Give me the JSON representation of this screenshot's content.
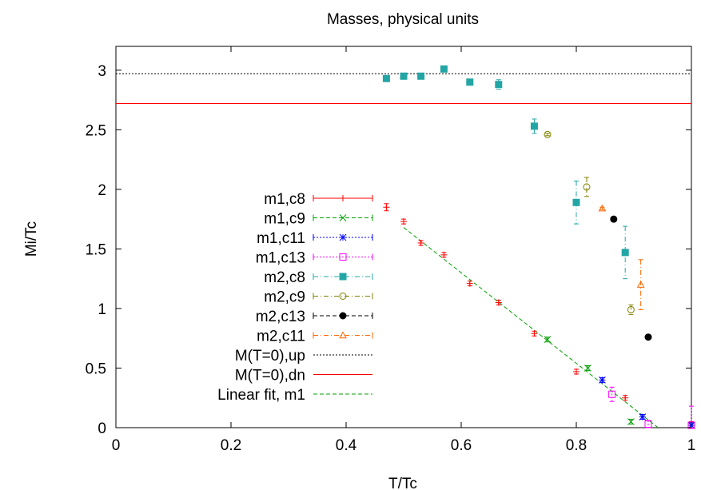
{
  "chart_data": {
    "type": "scatter",
    "title": "Masses, physical units",
    "xlabel": "T/Tc",
    "ylabel": "Mi/Tc",
    "xlim": [
      0,
      1
    ],
    "ylim": [
      0,
      3.2
    ],
    "xticks": [
      "0",
      "0.2",
      "0.4",
      "0.6",
      "0.8",
      "1"
    ],
    "yticks": [
      "0",
      "0.5",
      "1",
      "1.5",
      "2",
      "2.5",
      "3"
    ],
    "xtick_values": [
      0,
      0.2,
      0.4,
      0.6,
      0.8,
      1
    ],
    "ytick_values": [
      0,
      0.5,
      1,
      1.5,
      2,
      2.5,
      3
    ],
    "grid": false,
    "legend_position": "left",
    "series": [
      {
        "name": "m1,c8",
        "color": "#ff0000",
        "marker": "plus",
        "line": "solid",
        "points": [
          {
            "x": 0.47,
            "y": 1.85,
            "err": 0.03
          },
          {
            "x": 0.5,
            "y": 1.73,
            "err": 0.02
          },
          {
            "x": 0.53,
            "y": 1.55,
            "err": 0.02
          },
          {
            "x": 0.57,
            "y": 1.45,
            "err": 0.02
          },
          {
            "x": 0.615,
            "y": 1.21,
            "err": 0.02
          },
          {
            "x": 0.665,
            "y": 1.05,
            "err": 0.02
          },
          {
            "x": 0.727,
            "y": 0.79,
            "err": 0.02
          },
          {
            "x": 0.8,
            "y": 0.47,
            "err": 0.02
          },
          {
            "x": 0.885,
            "y": 0.25,
            "err": 0.02
          },
          {
            "x": 1.0,
            "y": 0.02,
            "err": 0.03
          }
        ]
      },
      {
        "name": "m1,c9",
        "color": "#00a000",
        "marker": "cross",
        "line": "dashed",
        "points": [
          {
            "x": 0.75,
            "y": 0.74,
            "err": 0.02
          },
          {
            "x": 0.82,
            "y": 0.5,
            "err": 0.02
          },
          {
            "x": 0.895,
            "y": 0.05,
            "err": 0.02
          },
          {
            "x": 1.0,
            "y": 0.02,
            "err": 0.02
          }
        ]
      },
      {
        "name": "m1,c11",
        "color": "#0000ff",
        "marker": "star",
        "line": "dotted",
        "points": [
          {
            "x": 0.845,
            "y": 0.4,
            "err": 0.02
          },
          {
            "x": 0.915,
            "y": 0.09,
            "err": 0.02
          },
          {
            "x": 1.0,
            "y": 0.02,
            "err": 0.02
          }
        ]
      },
      {
        "name": "m1,c13",
        "color": "#ff00ff",
        "marker": "square-open",
        "line": "dotted",
        "points": [
          {
            "x": 0.862,
            "y": 0.28,
            "err": 0.06
          },
          {
            "x": 0.925,
            "y": 0.03,
            "err": 0.03
          },
          {
            "x": 1.0,
            "y": 0.02,
            "err": 0.16
          }
        ]
      },
      {
        "name": "m2,c8",
        "color": "#23a5a5",
        "marker": "square-filled",
        "line": "dashdot",
        "points": [
          {
            "x": 0.47,
            "y": 2.93,
            "err": 0.02
          },
          {
            "x": 0.5,
            "y": 2.95,
            "err": 0.02
          },
          {
            "x": 0.53,
            "y": 2.95,
            "err": 0.02
          },
          {
            "x": 0.57,
            "y": 3.01,
            "err": 0.02
          },
          {
            "x": 0.615,
            "y": 2.9,
            "err": 0.02
          },
          {
            "x": 0.665,
            "y": 2.88,
            "err": 0.04
          },
          {
            "x": 0.727,
            "y": 2.53,
            "err": 0.06
          },
          {
            "x": 0.8,
            "y": 1.89,
            "err": 0.18
          },
          {
            "x": 0.885,
            "y": 1.47,
            "err": 0.22
          }
        ]
      },
      {
        "name": "m2,c9",
        "color": "#808000",
        "marker": "circle-open",
        "line": "dashdot",
        "points": [
          {
            "x": 0.75,
            "y": 2.46,
            "err": 0.01
          },
          {
            "x": 0.818,
            "y": 2.02,
            "err": 0.08
          },
          {
            "x": 0.895,
            "y": 0.99,
            "err": 0.04
          }
        ]
      },
      {
        "name": "m2,c13",
        "color": "#000000",
        "marker": "circle-filled",
        "line": "dashed",
        "points": [
          {
            "x": 0.865,
            "y": 1.75,
            "err": 0.02
          },
          {
            "x": 0.925,
            "y": 0.76,
            "err": 0.01
          }
        ]
      },
      {
        "name": "m2,c11",
        "color": "#ff6600",
        "marker": "triangle-open",
        "line": "dashdot",
        "points": [
          {
            "x": 0.845,
            "y": 1.84,
            "err": 0.01
          },
          {
            "x": 0.912,
            "y": 1.2,
            "err": 0.21
          }
        ]
      },
      {
        "name": "M(T=0),up",
        "color": "#000000",
        "kind": "hline",
        "line": "dotted",
        "y": 2.97
      },
      {
        "name": "M(T=0),dn",
        "color": "#ff0000",
        "kind": "hline",
        "line": "solid",
        "y": 2.72
      },
      {
        "name": "Linear fit, m1",
        "color": "#00a000",
        "kind": "fit",
        "line": "dashed",
        "from": {
          "x": 0.5,
          "y": 1.68
        },
        "to": {
          "x": 0.95,
          "y": -0.03
        }
      }
    ]
  }
}
